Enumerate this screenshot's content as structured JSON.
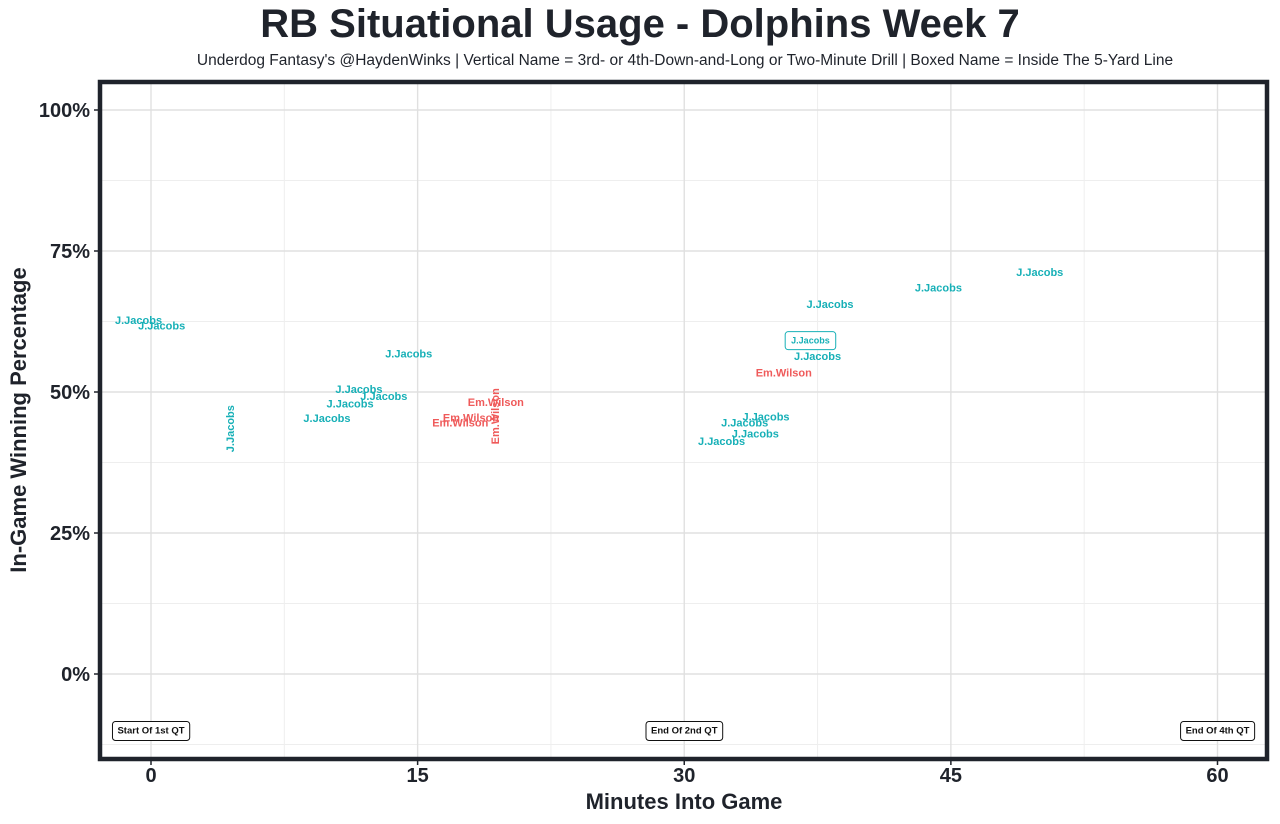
{
  "chart_data": {
    "type": "scatter",
    "title": "RB Situational Usage - Dolphins Week 7",
    "subtitle": "Underdog Fantasy's @HaydenWinks | Vertical Name = 3rd- or 4th-Down-and-Long or Two-Minute Drill | Boxed Name = Inside The 5-Yard Line",
    "xlabel": "Minutes Into Game",
    "ylabel": "In-Game Winning Percentage",
    "xlim": [
      -2.7,
      63
    ],
    "ylim": [
      -15,
      105
    ],
    "x_ticks": [
      0,
      15,
      30,
      45,
      60
    ],
    "x_tick_labels": [
      "0",
      "15",
      "30",
      "45",
      "60"
    ],
    "y_ticks": [
      0,
      25,
      50,
      75,
      100
    ],
    "y_tick_labels": [
      "0%",
      "25%",
      "50%",
      "75%",
      "100%"
    ],
    "grid": true,
    "colors": {
      "J.Jacobs": "#17b0b7",
      "Em.Wilson": "#ef5a5a",
      "frame": "#1f232b"
    },
    "quarter_markers": [
      {
        "x": 0,
        "label": "Start Of 1st QT"
      },
      {
        "x": 30,
        "label": "End Of 2nd QT"
      },
      {
        "x": 60,
        "label": "End Of 4th QT"
      }
    ],
    "points": [
      {
        "player": "J.Jacobs",
        "x": -0.7,
        "y": 62.8,
        "style": "normal"
      },
      {
        "player": "J.Jacobs",
        "x": 0.6,
        "y": 61.8,
        "style": "normal"
      },
      {
        "player": "J.Jacobs",
        "x": 4.5,
        "y": 43.5,
        "style": "vertical"
      },
      {
        "player": "J.Jacobs",
        "x": 14.5,
        "y": 56.8,
        "style": "normal"
      },
      {
        "player": "J.Jacobs",
        "x": 11.7,
        "y": 50.5,
        "style": "normal"
      },
      {
        "player": "J.Jacobs",
        "x": 13.1,
        "y": 49.3,
        "style": "normal"
      },
      {
        "player": "J.Jacobs",
        "x": 11.2,
        "y": 48.0,
        "style": "normal"
      },
      {
        "player": "J.Jacobs",
        "x": 9.9,
        "y": 45.4,
        "style": "normal"
      },
      {
        "player": "Em.Wilson",
        "x": 19.4,
        "y": 48.2,
        "style": "normal"
      },
      {
        "player": "Em.Wilson",
        "x": 19.4,
        "y": 45.7,
        "style": "vertical"
      },
      {
        "player": "Em.Wilson",
        "x": 18.0,
        "y": 45.5,
        "style": "normal"
      },
      {
        "player": "Em.Wilson",
        "x": 17.4,
        "y": 44.6,
        "style": "normal"
      },
      {
        "player": "J.Jacobs",
        "x": 50.0,
        "y": 71.3,
        "style": "normal"
      },
      {
        "player": "J.Jacobs",
        "x": 44.3,
        "y": 68.5,
        "style": "normal"
      },
      {
        "player": "J.Jacobs",
        "x": 38.2,
        "y": 65.6,
        "style": "normal"
      },
      {
        "player": "J.Jacobs",
        "x": 37.1,
        "y": 59.1,
        "style": "boxed"
      },
      {
        "player": "J.Jacobs",
        "x": 37.5,
        "y": 56.4,
        "style": "normal"
      },
      {
        "player": "Em.Wilson",
        "x": 35.6,
        "y": 53.5,
        "style": "normal"
      },
      {
        "player": "J.Jacobs",
        "x": 34.6,
        "y": 45.7,
        "style": "normal"
      },
      {
        "player": "J.Jacobs",
        "x": 33.4,
        "y": 44.6,
        "style": "normal"
      },
      {
        "player": "J.Jacobs",
        "x": 34.0,
        "y": 42.6,
        "style": "normal"
      },
      {
        "player": "J.Jacobs",
        "x": 32.1,
        "y": 41.3,
        "style": "normal"
      }
    ]
  }
}
